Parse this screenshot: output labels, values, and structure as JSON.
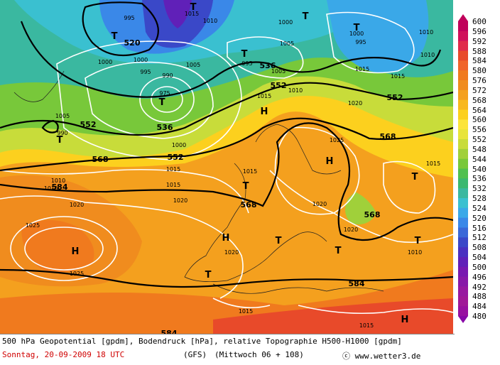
{
  "map": {
    "pressure_labels": [
      "995",
      "1010",
      "1000",
      "1000",
      "995",
      "1000",
      "1005",
      "995",
      "990",
      "975",
      "1005",
      "990",
      "1000",
      "1005",
      "1010",
      "1010",
      "1015",
      "1005",
      "995",
      "1000",
      "1010",
      "1015",
      "1015",
      "1020",
      "1020",
      "1025",
      "1025",
      "1020",
      "1015",
      "1020",
      "1020",
      "1015",
      "1015",
      "1010",
      "1025",
      "1020",
      "1015",
      "1015",
      "1015",
      "1010",
      "1015",
      "1015"
    ],
    "geopotential_labels": [
      "520",
      "552",
      "552",
      "536",
      "552",
      "536",
      "552",
      "568",
      "568",
      "584",
      "568",
      "568",
      "584",
      "584"
    ],
    "highs_label": "H",
    "lows_label": "T"
  },
  "scale": {
    "values": [
      "600",
      "596",
      "592",
      "588",
      "584",
      "580",
      "576",
      "572",
      "568",
      "564",
      "560",
      "556",
      "552",
      "548",
      "544",
      "540",
      "536",
      "532",
      "528",
      "524",
      "520",
      "516",
      "512",
      "508",
      "504",
      "500",
      "496",
      "492",
      "488",
      "484",
      "480"
    ],
    "colors": [
      "#c0005a",
      "#d0105a",
      "#e02a4a",
      "#e84a2a",
      "#f0642a",
      "#f07a1e",
      "#f08c1e",
      "#f4a01e",
      "#f8b81e",
      "#fcd01e",
      "#fce43a",
      "#e8e43a",
      "#c8dc3a",
      "#a0d03a",
      "#78c83a",
      "#50c050",
      "#3ab870",
      "#3ab8a0",
      "#3ac0d0",
      "#3aa8e8",
      "#3a88e8",
      "#3a68d8",
      "#3a48c8",
      "#4a30c0",
      "#6020b8",
      "#7818b0",
      "#8818a8",
      "#9818a0",
      "#a01898",
      "#9810a0",
      "#8808a8"
    ]
  },
  "caption": {
    "line1": "500 hPa Geopotential [gpdm], Bodendruck [hPa], relative Topographie H500-H1000 [gpdm]",
    "date": "Sonntag, 20-09-2009  18 UTC",
    "model": "(GFS)",
    "forecast": "(Mittwoch 06 + 108)",
    "copyright": "ⓒ www.wetter3.de"
  }
}
